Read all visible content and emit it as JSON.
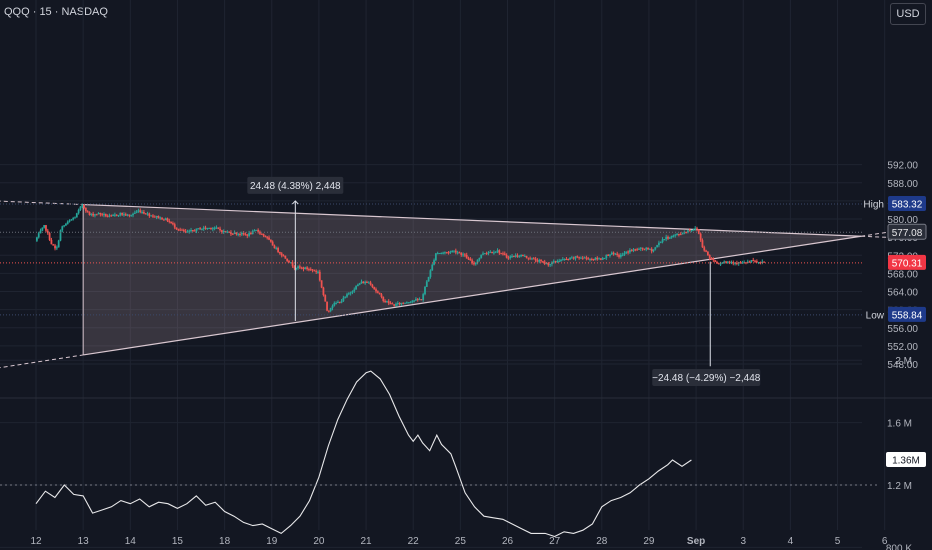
{
  "header": {
    "title": "QQQ · 15 · NASDAQ",
    "currency": "USD"
  },
  "colors": {
    "background": "#131722",
    "up": "#26a69a",
    "down": "#ef5350",
    "pattern_fill": "#f2c7cf",
    "pattern_line": "#d9c7d0",
    "label_blue": "#1e3a8a"
  },
  "chart_data": [
    {
      "type": "candlestick",
      "title": "",
      "x_ticks": [
        "12",
        "13",
        "14",
        "15",
        "18",
        "19",
        "20",
        "21",
        "22",
        "25",
        "26",
        "27",
        "28",
        "29",
        "Sep",
        "3",
        "4",
        "5",
        "6"
      ],
      "y_ticks": [
        592,
        588,
        584,
        580,
        576,
        572,
        568,
        564,
        560,
        556,
        552,
        548
      ],
      "ylim": [
        545,
        596
      ],
      "price_path": [
        [
          12.0,
          575.2
        ],
        [
          12.1,
          577.0
        ],
        [
          12.2,
          578.5
        ],
        [
          12.35,
          574.5
        ],
        [
          12.45,
          573.0
        ],
        [
          12.55,
          578.0
        ],
        [
          12.7,
          579.3
        ],
        [
          12.85,
          580.5
        ],
        [
          13.0,
          583.2
        ],
        [
          13.15,
          580.9
        ],
        [
          13.35,
          581.2
        ],
        [
          13.6,
          580.5
        ],
        [
          13.8,
          581.2
        ],
        [
          14.0,
          580.7
        ],
        [
          14.2,
          581.9
        ],
        [
          14.4,
          581.0
        ],
        [
          14.6,
          580.4
        ],
        [
          14.8,
          579.8
        ],
        [
          15.0,
          578.0
        ],
        [
          15.2,
          577.0
        ],
        [
          15.5,
          577.9
        ],
        [
          15.8,
          578.1
        ],
        [
          16.0,
          577.2
        ],
        [
          16.3,
          576.8
        ],
        [
          16.5,
          576.5
        ],
        [
          16.7,
          577.5
        ],
        [
          16.9,
          576.0
        ],
        [
          17.1,
          573.5
        ],
        [
          17.3,
          571.5
        ],
        [
          17.5,
          569.4
        ],
        [
          17.8,
          569.0
        ],
        [
          18.0,
          568.3
        ],
        [
          18.2,
          559.5
        ],
        [
          18.3,
          561.0
        ],
        [
          18.5,
          562.0
        ],
        [
          18.7,
          564.0
        ],
        [
          18.9,
          566.0
        ],
        [
          19.1,
          566.0
        ],
        [
          19.2,
          564.5
        ],
        [
          19.4,
          562.0
        ],
        [
          19.6,
          561.0
        ],
        [
          19.8,
          561.5
        ],
        [
          20.0,
          562.0
        ],
        [
          20.2,
          562.3
        ],
        [
          20.3,
          566.0
        ],
        [
          20.4,
          569.0
        ],
        [
          20.5,
          572.5
        ],
        [
          20.7,
          572.6
        ],
        [
          20.9,
          573.0
        ],
        [
          21.1,
          572.0
        ],
        [
          21.3,
          570.0
        ],
        [
          21.5,
          572.5
        ],
        [
          21.8,
          573.0
        ],
        [
          22.0,
          571.6
        ],
        [
          22.3,
          572.0
        ],
        [
          22.6,
          571.0
        ],
        [
          22.9,
          570.0
        ],
        [
          23.1,
          570.9
        ],
        [
          23.3,
          571.1
        ],
        [
          23.5,
          571.6
        ],
        [
          23.8,
          571.2
        ],
        [
          24.0,
          571.2
        ],
        [
          24.2,
          572.4
        ],
        [
          24.4,
          571.8
        ],
        [
          24.6,
          573.0
        ],
        [
          24.9,
          573.5
        ],
        [
          25.1,
          573.1
        ],
        [
          25.3,
          575.5
        ],
        [
          25.5,
          576.2
        ],
        [
          25.7,
          576.8
        ],
        [
          25.9,
          577.7
        ],
        [
          26.05,
          577.8
        ],
        [
          26.15,
          574.0
        ],
        [
          26.3,
          571.5
        ],
        [
          26.5,
          570.2
        ],
        [
          26.6,
          570.6
        ],
        [
          26.8,
          570.5
        ],
        [
          27.0,
          570.2
        ],
        [
          27.2,
          570.7
        ],
        [
          27.35,
          570.4
        ],
        [
          27.45,
          570.3
        ]
      ]
    },
    {
      "type": "line",
      "title": "",
      "series_name": "",
      "y_ticks": [
        "2 M",
        "1.6 M",
        "1.2 M",
        "800 K"
      ],
      "current_value_label": "1.36M",
      "ylim": [
        650000,
        2100000
      ],
      "points": [
        [
          12.0,
          1.08
        ],
        [
          12.2,
          1.16
        ],
        [
          12.4,
          1.12
        ],
        [
          12.6,
          1.2
        ],
        [
          12.8,
          1.14
        ],
        [
          13.0,
          1.13
        ],
        [
          13.2,
          1.02
        ],
        [
          13.4,
          1.04
        ],
        [
          13.6,
          1.06
        ],
        [
          13.8,
          1.1
        ],
        [
          14.0,
          1.08
        ],
        [
          14.2,
          1.11
        ],
        [
          14.4,
          1.06
        ],
        [
          14.6,
          1.09
        ],
        [
          14.8,
          1.08
        ],
        [
          15.0,
          1.05
        ],
        [
          15.2,
          1.08
        ],
        [
          15.4,
          1.13
        ],
        [
          15.6,
          1.07
        ],
        [
          15.8,
          1.09
        ],
        [
          16.0,
          1.03
        ],
        [
          16.2,
          1.0
        ],
        [
          16.4,
          0.96
        ],
        [
          16.6,
          0.94
        ],
        [
          16.8,
          0.95
        ],
        [
          17.0,
          0.92
        ],
        [
          17.2,
          0.89
        ],
        [
          17.4,
          0.94
        ],
        [
          17.6,
          1.0
        ],
        [
          17.8,
          1.1
        ],
        [
          18.0,
          1.25
        ],
        [
          18.2,
          1.45
        ],
        [
          18.4,
          1.62
        ],
        [
          18.6,
          1.75
        ],
        [
          18.8,
          1.86
        ],
        [
          19.0,
          1.92
        ],
        [
          19.1,
          1.93
        ],
        [
          19.3,
          1.88
        ],
        [
          19.5,
          1.78
        ],
        [
          19.7,
          1.64
        ],
        [
          19.9,
          1.52
        ],
        [
          20.0,
          1.48
        ],
        [
          20.1,
          1.52
        ],
        [
          20.2,
          1.47
        ],
        [
          20.35,
          1.42
        ],
        [
          20.5,
          1.52
        ],
        [
          20.6,
          1.46
        ],
        [
          20.8,
          1.4
        ],
        [
          20.9,
          1.32
        ],
        [
          21.1,
          1.15
        ],
        [
          21.3,
          1.06
        ],
        [
          21.5,
          1.0
        ],
        [
          21.7,
          0.99
        ],
        [
          21.9,
          0.98
        ],
        [
          22.1,
          0.95
        ],
        [
          22.3,
          0.92
        ],
        [
          22.5,
          0.89
        ],
        [
          22.8,
          0.89
        ],
        [
          23.0,
          0.87
        ],
        [
          23.2,
          0.9
        ],
        [
          23.4,
          0.89
        ],
        [
          23.6,
          0.91
        ],
        [
          23.8,
          0.95
        ],
        [
          24.0,
          1.06
        ],
        [
          24.2,
          1.1
        ],
        [
          24.4,
          1.12
        ],
        [
          24.6,
          1.15
        ],
        [
          24.8,
          1.2
        ],
        [
          25.0,
          1.24
        ],
        [
          25.2,
          1.29
        ],
        [
          25.4,
          1.33
        ],
        [
          25.5,
          1.36
        ],
        [
          25.7,
          1.32
        ],
        [
          25.9,
          1.36
        ]
      ]
    }
  ],
  "annotations": {
    "range_up": "24.48 (4.38%) 2,448",
    "range_down": "−24.48 (−4.29%) −2,448",
    "high_label": "High",
    "high_value": "583.32",
    "low_label": "Low",
    "low_value": "558.84",
    "upper_trend_value": "577.08",
    "last_price": "570.31",
    "faint_price_584": "584.00",
    "faint_price_560": "560.00"
  }
}
